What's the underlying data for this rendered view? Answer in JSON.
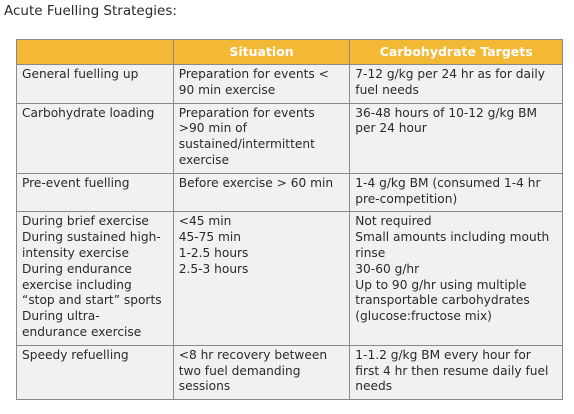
{
  "heading": "Acute Fuelling Strategies:",
  "columns": [
    "",
    "Situation",
    "Carbohydrate Targets"
  ],
  "colors": {
    "header_bg": "#f3b935",
    "cell_bg": "#f1f1f1",
    "border": "#8a8a8a"
  },
  "rows": [
    {
      "strategy": [
        "General fuelling up"
      ],
      "situation": [
        "Preparation for events <",
        "90 min exercise"
      ],
      "target": [
        "7-12 g/kg per 24 hr as for daily",
        "fuel needs"
      ]
    },
    {
      "strategy": [
        "Carbohydrate loading"
      ],
      "situation": [
        "Preparation for events",
        ">90 min of",
        "sustained/intermittent",
        "exercise"
      ],
      "target": [
        "36-48 hours of 10-12 g/kg BM",
        "per 24 hour"
      ]
    },
    {
      "strategy": [
        "Pre-event fuelling"
      ],
      "situation": [
        "Before exercise > 60 min"
      ],
      "target": [
        "1-4 g/kg BM (consumed 1-4 hr",
        "pre-competition)"
      ]
    },
    {
      "strategy": [
        "During brief exercise",
        "During sustained high-",
        "intensity exercise",
        "During endurance",
        "exercise including",
        "“stop and start” sports",
        "During ultra-",
        "endurance exercise"
      ],
      "situation": [
        "<45 min",
        "45-75 min",
        "1-2.5 hours",
        "2.5-3 hours"
      ],
      "target": [
        "Not required",
        "Small amounts including mouth",
        "rinse",
        "30-60 g/hr",
        "Up to 90 g/hr using multiple",
        "transportable carbohydrates",
        "(glucose:fructose mix)"
      ]
    },
    {
      "strategy": [
        "Speedy refuelling"
      ],
      "situation": [
        "<8 hr recovery between",
        "two fuel demanding",
        "sessions"
      ],
      "target": [
        "1-1.2 g/kg BM every hour for",
        "first 4 hr then resume daily fuel",
        "needs"
      ]
    }
  ]
}
